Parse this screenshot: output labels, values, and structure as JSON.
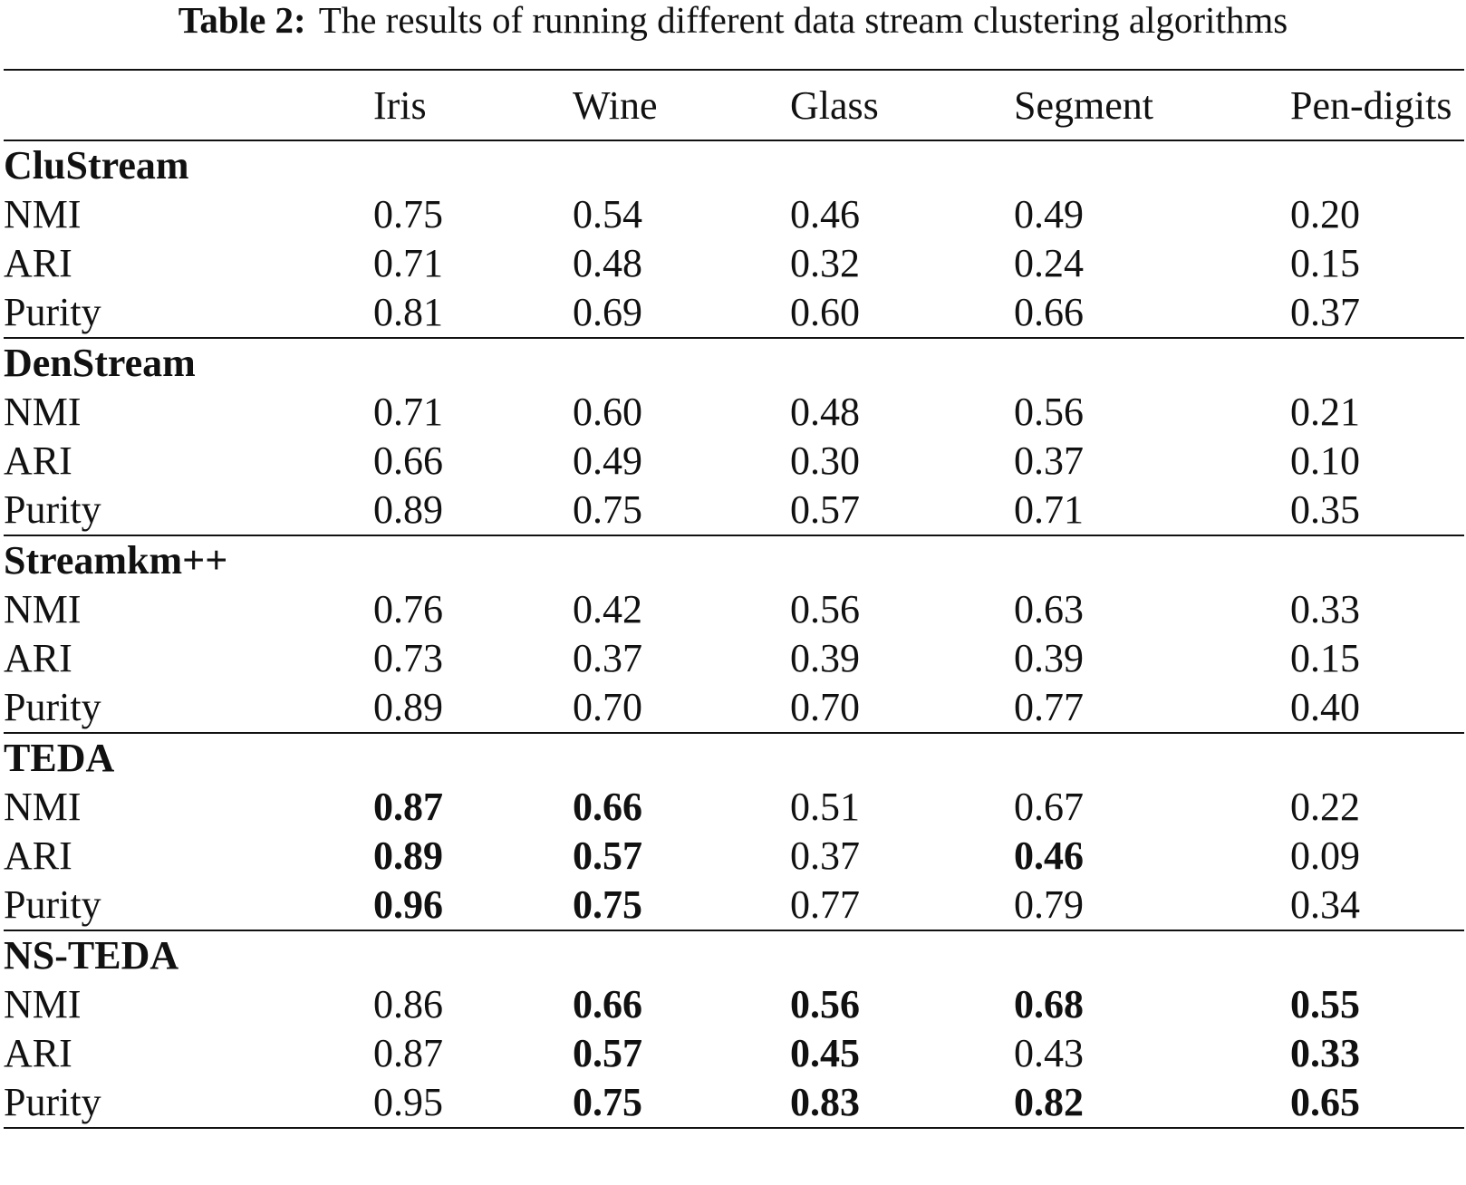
{
  "caption": {
    "label": "Table 2:",
    "text": "The results of running different data stream clustering algorithms"
  },
  "table": {
    "columns": [
      "",
      "Iris",
      "Wine",
      "Glass",
      "Segment",
      "Pen-digits"
    ],
    "groups": [
      {
        "name": "CluStream",
        "rows": [
          {
            "metric": "NMI",
            "values": [
              "0.75",
              "0.54",
              "0.46",
              "0.49",
              "0.20"
            ],
            "bold": [
              false,
              false,
              false,
              false,
              false
            ]
          },
          {
            "metric": "ARI",
            "values": [
              "0.71",
              "0.48",
              "0.32",
              "0.24",
              "0.15"
            ],
            "bold": [
              false,
              false,
              false,
              false,
              false
            ]
          },
          {
            "metric": "Purity",
            "values": [
              "0.81",
              "0.69",
              "0.60",
              "0.66",
              "0.37"
            ],
            "bold": [
              false,
              false,
              false,
              false,
              false
            ]
          }
        ]
      },
      {
        "name": "DenStream",
        "rows": [
          {
            "metric": "NMI",
            "values": [
              "0.71",
              "0.60",
              "0.48",
              "0.56",
              "0.21"
            ],
            "bold": [
              false,
              false,
              false,
              false,
              false
            ]
          },
          {
            "metric": "ARI",
            "values": [
              "0.66",
              "0.49",
              "0.30",
              "0.37",
              "0.10"
            ],
            "bold": [
              false,
              false,
              false,
              false,
              false
            ]
          },
          {
            "metric": "Purity",
            "values": [
              "0.89",
              "0.75",
              "0.57",
              "0.71",
              "0.35"
            ],
            "bold": [
              false,
              false,
              false,
              false,
              false
            ]
          }
        ]
      },
      {
        "name": "Streamkm++",
        "rows": [
          {
            "metric": "NMI",
            "values": [
              "0.76",
              "0.42",
              "0.56",
              "0.63",
              "0.33"
            ],
            "bold": [
              false,
              false,
              false,
              false,
              false
            ]
          },
          {
            "metric": "ARI",
            "values": [
              "0.73",
              "0.37",
              "0.39",
              "0.39",
              "0.15"
            ],
            "bold": [
              false,
              false,
              false,
              false,
              false
            ]
          },
          {
            "metric": "Purity",
            "values": [
              "0.89",
              "0.70",
              "0.70",
              "0.77",
              "0.40"
            ],
            "bold": [
              false,
              false,
              false,
              false,
              false
            ]
          }
        ]
      },
      {
        "name": "TEDA",
        "rows": [
          {
            "metric": "NMI",
            "values": [
              "0.87",
              "0.66",
              "0.51",
              "0.67",
              "0.22"
            ],
            "bold": [
              true,
              true,
              false,
              false,
              false
            ]
          },
          {
            "metric": "ARI",
            "values": [
              "0.89",
              "0.57",
              "0.37",
              "0.46",
              "0.09"
            ],
            "bold": [
              true,
              true,
              false,
              true,
              false
            ]
          },
          {
            "metric": "Purity",
            "values": [
              "0.96",
              "0.75",
              "0.77",
              "0.79",
              "0.34"
            ],
            "bold": [
              true,
              true,
              false,
              false,
              false
            ]
          }
        ]
      },
      {
        "name": "NS-TEDA",
        "rows": [
          {
            "metric": "NMI",
            "values": [
              "0.86",
              "0.66",
              "0.56",
              "0.68",
              "0.55"
            ],
            "bold": [
              false,
              true,
              true,
              true,
              true
            ]
          },
          {
            "metric": "ARI",
            "values": [
              "0.87",
              "0.57",
              "0.45",
              "0.43",
              "0.33"
            ],
            "bold": [
              false,
              true,
              true,
              false,
              true
            ]
          },
          {
            "metric": "Purity",
            "values": [
              "0.95",
              "0.75",
              "0.83",
              "0.82",
              "0.65"
            ],
            "bold": [
              false,
              true,
              true,
              true,
              true
            ]
          }
        ]
      }
    ]
  }
}
